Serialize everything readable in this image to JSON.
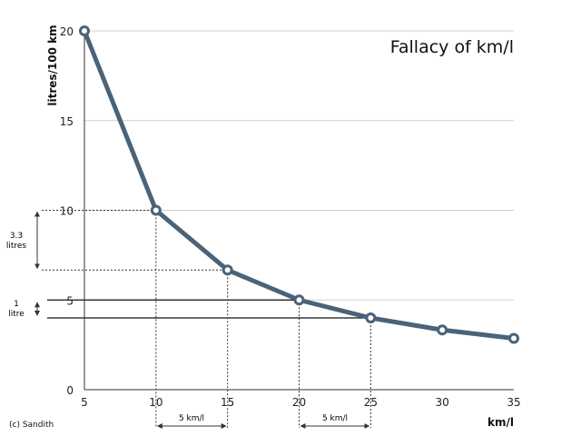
{
  "chart_data": {
    "type": "line",
    "title": "Fallacy of km/l",
    "xlabel": "km/l",
    "ylabel": "litres/100 km",
    "x": [
      5,
      10,
      15,
      20,
      25,
      30,
      35
    ],
    "series": [
      {
        "name": "litres/100 km",
        "values": [
          20,
          10,
          6.67,
          5,
          4,
          3.33,
          2.86
        ]
      }
    ],
    "xlim": [
      5,
      35
    ],
    "ylim": [
      0,
      20
    ],
    "xticks": [
      "5",
      "10",
      "15",
      "20",
      "25",
      "30",
      "35"
    ],
    "yticks": [
      "0",
      "5",
      "10",
      "15",
      "20"
    ],
    "grid": true,
    "line_color": "#4a6378",
    "annotations": {
      "left_big": {
        "line1": "3.3",
        "line2": "litres",
        "from": 10,
        "to": 6.67
      },
      "left_small": {
        "line1": "1",
        "line2": "litre",
        "from": 5,
        "to": 4
      },
      "bottom_1": {
        "label": "5 km/l",
        "from": 10,
        "to": 15
      },
      "bottom_2": {
        "label": "5 km/l",
        "from": 20,
        "to": 25
      }
    },
    "credit": "(c) Sandith"
  }
}
